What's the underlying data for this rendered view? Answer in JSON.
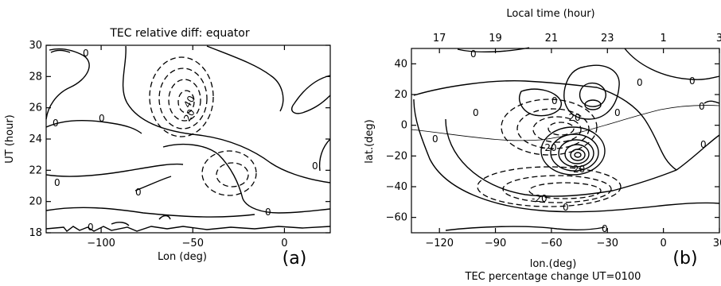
{
  "chart_data": [
    {
      "type": "contour",
      "panel_label": "(a)",
      "title": "TEC relative diff: equator",
      "xlabel": "Lon (deg)",
      "ylabel": "UT (hour)",
      "xlim": [
        -130,
        25
      ],
      "ylim": [
        18,
        30
      ],
      "xticks": [
        -100,
        -50,
        0
      ],
      "yticks": [
        18,
        20,
        22,
        24,
        26,
        28,
        30
      ],
      "contour_labels": [
        "0",
        "0",
        "0",
        "0",
        "0",
        "0",
        "0",
        "0",
        "40",
        "20"
      ],
      "line_styles": {
        "positive": "solid",
        "negative": "dashed"
      }
    },
    {
      "type": "contour",
      "panel_label": "(b)",
      "top_axis_label": "Local time (hour)",
      "xlabel": "lon.(deg)",
      "ylabel": "lat.(deg)",
      "footer": "TEC percentage change UT=0100",
      "xlim": [
        -135,
        30
      ],
      "ylim": [
        -70,
        50
      ],
      "xticks": [
        -120,
        -90,
        -60,
        -30,
        0,
        30
      ],
      "yticks": [
        -60,
        -40,
        -20,
        0,
        20,
        40
      ],
      "top_ticks": [
        "17",
        "19",
        "21",
        "23",
        "1",
        "3"
      ],
      "contour_labels": [
        "0",
        "0",
        "0",
        "0",
        "0",
        "0",
        "0",
        "0",
        "0",
        "0",
        "-20",
        "-20",
        "-20",
        "20",
        "0"
      ],
      "line_styles": {
        "positive": "solid",
        "negative": "dashed"
      }
    }
  ]
}
